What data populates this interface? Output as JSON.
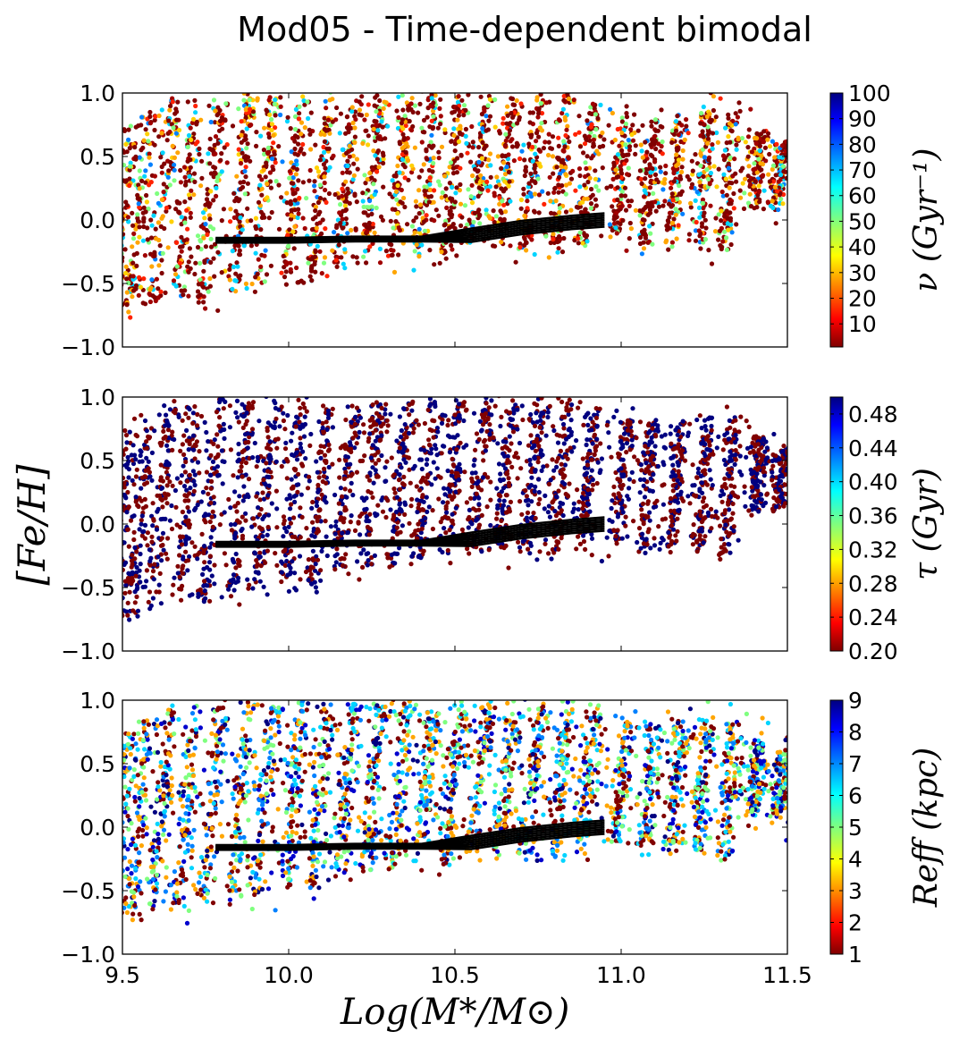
{
  "chart_data": {
    "type": "scatter",
    "title": "Mod05 - Time-dependent bimodal",
    "xlabel": "Log(M*/M⊙)",
    "ylabel": "[Fe/H]",
    "xlim": [
      9.5,
      11.5
    ],
    "ylim": [
      -1.0,
      1.0
    ],
    "xticks": [
      9.5,
      10.0,
      10.5,
      11.0,
      11.5
    ],
    "xtick_labels": [
      "9.5",
      "10.0",
      "10.5",
      "11.0",
      "11.5"
    ],
    "yticks": [
      1.0,
      0.5,
      0.0,
      -0.5,
      -1.0
    ],
    "ytick_labels": [
      "1.0",
      "0.5",
      "0.0",
      "−0.5",
      "−1.0"
    ],
    "grid": false,
    "colormap": "jet",
    "marker_color_black_line": "#000000",
    "panels": [
      {
        "id": "nu",
        "colorbar_label": "ν (Gyr⁻¹)",
        "colorbar_range": [
          1,
          100
        ],
        "colorbar_ticks": [
          "100",
          "90",
          "80",
          "70",
          "60",
          "50",
          "40",
          "30",
          "20",
          "10"
        ],
        "colorbar_tick_values": [
          100,
          90,
          80,
          70,
          60,
          50,
          40,
          30,
          20,
          10
        ],
        "point_palette": [
          "#800000",
          "#a00000",
          "#ff2200",
          "#ffa500",
          "#ffd000",
          "#7fff7f",
          "#00d4ff",
          "#0080ff"
        ],
        "point_weights": [
          0.45,
          0.12,
          0.05,
          0.14,
          0.04,
          0.09,
          0.08,
          0.03
        ]
      },
      {
        "id": "tau",
        "colorbar_label": "τ (Gyr)",
        "colorbar_range": [
          0.2,
          0.5
        ],
        "colorbar_ticks": [
          "0.48",
          "0.44",
          "0.40",
          "0.36",
          "0.32",
          "0.28",
          "0.24",
          "0.20"
        ],
        "colorbar_tick_values": [
          0.48,
          0.44,
          0.4,
          0.36,
          0.32,
          0.28,
          0.24,
          0.2
        ],
        "point_palette": [
          "#800000",
          "#000080"
        ],
        "point_weights": [
          0.5,
          0.5
        ]
      },
      {
        "id": "reff",
        "colorbar_label": "Reff (kpc)",
        "colorbar_range": [
          1,
          9
        ],
        "colorbar_ticks": [
          "9",
          "8",
          "7",
          "6",
          "5",
          "4",
          "3",
          "2",
          "1"
        ],
        "colorbar_tick_values": [
          9,
          8,
          7,
          6,
          5,
          4,
          3,
          2,
          1
        ],
        "point_palette": [
          "#800000",
          "#ffa500",
          "#7fff7f",
          "#00d4ff",
          "#0080ff",
          "#0000cd",
          "#000080"
        ],
        "point_weights": [
          0.22,
          0.18,
          0.14,
          0.14,
          0.14,
          0.1,
          0.08
        ]
      }
    ],
    "mean_relation": {
      "description_units": "data",
      "x": [
        9.78,
        10.0,
        10.2,
        10.4,
        10.55,
        10.7,
        10.85,
        10.95
      ],
      "y": [
        -0.16,
        -0.16,
        -0.15,
        -0.15,
        -0.12,
        -0.06,
        -0.02,
        0.0
      ]
    },
    "sequences": [
      {
        "x0": 9.52,
        "y0": 0.75,
        "dx": -0.05,
        "dy": -1.55
      },
      {
        "x0": 9.58,
        "y0": 0.85,
        "dx": -0.06,
        "dy": -1.6
      },
      {
        "x0": 9.65,
        "y0": 0.95,
        "dx": -0.06,
        "dy": -1.6
      },
      {
        "x0": 9.72,
        "y0": 0.95,
        "dx": -0.05,
        "dy": -1.55
      },
      {
        "x0": 9.8,
        "y0": 0.98,
        "dx": -0.06,
        "dy": -1.6
      },
      {
        "x0": 9.88,
        "y0": 0.98,
        "dx": -0.05,
        "dy": -1.55
      },
      {
        "x0": 9.96,
        "y0": 0.98,
        "dx": -0.06,
        "dy": -1.5
      },
      {
        "x0": 10.04,
        "y0": 0.98,
        "dx": -0.05,
        "dy": -1.45
      },
      {
        "x0": 10.12,
        "y0": 0.98,
        "dx": -0.05,
        "dy": -1.45
      },
      {
        "x0": 10.2,
        "y0": 0.98,
        "dx": -0.05,
        "dy": -1.35
      },
      {
        "x0": 10.28,
        "y0": 0.98,
        "dx": -0.05,
        "dy": -1.3
      },
      {
        "x0": 10.36,
        "y0": 0.98,
        "dx": -0.05,
        "dy": -1.3
      },
      {
        "x0": 10.44,
        "y0": 0.98,
        "dx": -0.05,
        "dy": -1.25
      },
      {
        "x0": 10.52,
        "y0": 0.98,
        "dx": -0.05,
        "dy": -1.25
      },
      {
        "x0": 10.6,
        "y0": 0.98,
        "dx": -0.05,
        "dy": -1.2
      },
      {
        "x0": 10.68,
        "y0": 0.98,
        "dx": -0.05,
        "dy": -1.2
      },
      {
        "x0": 10.76,
        "y0": 0.98,
        "dx": -0.05,
        "dy": -1.2
      },
      {
        "x0": 10.84,
        "y0": 0.98,
        "dx": -0.04,
        "dy": -1.2
      },
      {
        "x0": 10.92,
        "y0": 0.9,
        "dx": -0.04,
        "dy": -1.1
      },
      {
        "x0": 11.02,
        "y0": 0.85,
        "dx": -0.04,
        "dy": -1.0
      },
      {
        "x0": 11.1,
        "y0": 0.8,
        "dx": -0.03,
        "dy": -1.0
      },
      {
        "x0": 11.18,
        "y0": 0.82,
        "dx": -0.03,
        "dy": -1.0
      },
      {
        "x0": 11.26,
        "y0": 0.85,
        "dx": -0.03,
        "dy": -1.05
      },
      {
        "x0": 11.34,
        "y0": 0.85,
        "dx": -0.03,
        "dy": -1.1
      },
      {
        "x0": 11.42,
        "y0": 0.7,
        "dx": -0.02,
        "dy": -0.6
      },
      {
        "x0": 11.49,
        "y0": 0.6,
        "dx": -0.02,
        "dy": -0.5
      }
    ]
  }
}
